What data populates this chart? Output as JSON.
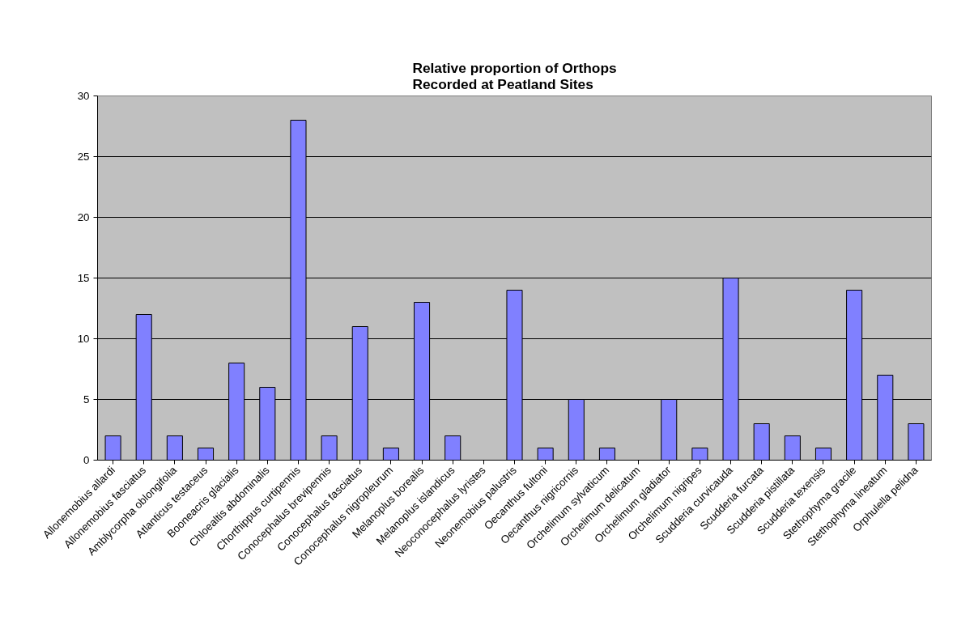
{
  "chart_data": {
    "type": "bar",
    "title": "Relative proportion of Orthops\nRecorded at Peatland Sites",
    "categories": [
      "Allonemobius allardi",
      "Allonemobius fasciatus",
      "Amblycorpha oblongifolia",
      "Atlanticus testaceus",
      "Booneacris glacialis",
      "Chloealtis abdominalis",
      "Chorthippus curtipennis",
      "Conocephalus brevipennis",
      "Conocephalus fasciatus",
      "Conocephalus nigropleurum",
      "Melanoplus borealis",
      "Melanoplus islandicus",
      "Neoconocephalus lyristes",
      "Neonemobius palustris",
      "Oecanthus fultoni",
      "Oecanthus nigricornis",
      "Orchelimum sylvaticum",
      "Orchelimum delicatum",
      "Orchelimum gladiator",
      "Orchelimum nigripes",
      "Scudderia curvicauda",
      "Scudderia furcata",
      "Scudderia pistillata",
      "Scudderia texensis",
      "Stethophyma gracile",
      "Stethophyma lineatum",
      "Orphulella pelidna"
    ],
    "values": [
      2,
      12,
      2,
      1,
      8,
      6,
      28,
      2,
      11,
      1,
      13,
      2,
      0,
      14,
      1,
      5,
      1,
      0,
      5,
      1,
      15,
      3,
      2,
      1,
      14,
      7,
      3
    ],
    "color": "#8080ff",
    "ylim": [
      0,
      30
    ],
    "yticks": [
      0,
      5,
      10,
      15,
      20,
      25,
      30
    ],
    "grid": "y"
  }
}
